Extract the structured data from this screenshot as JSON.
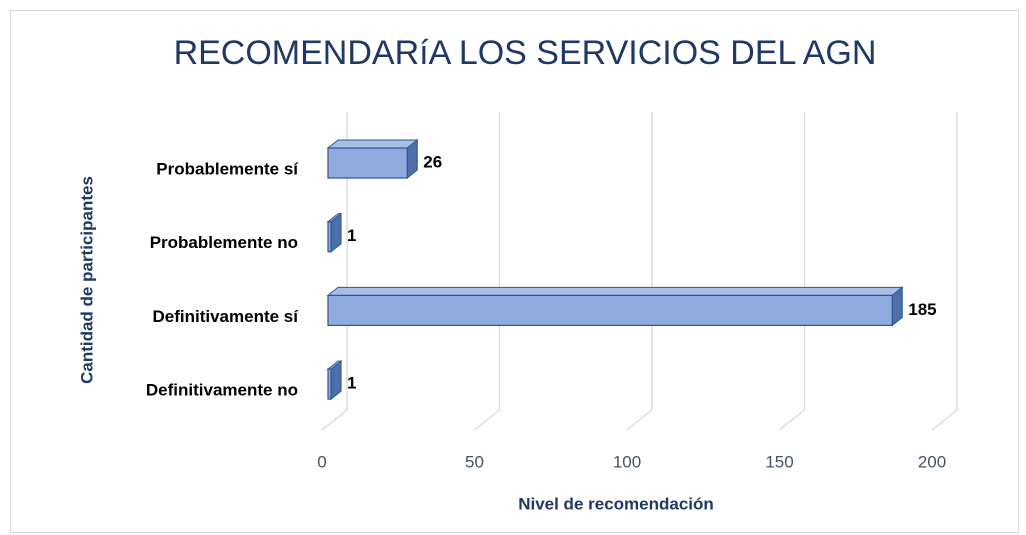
{
  "chart_data": {
    "type": "bar",
    "orientation": "horizontal",
    "title": "RECOMENDARíA LOS SERVICIOS DEL AGN",
    "x_label": "Nivel de recomendación",
    "y_label": "Cantidad de participantes",
    "categories": [
      "Probablemente sí",
      "Probablemente no",
      "Definitivamente sí",
      "Definitivamente no"
    ],
    "values": [
      26,
      1,
      185,
      1
    ],
    "color": "#8faadc",
    "xlim": [
      0,
      200
    ],
    "xticks": [
      0,
      50,
      100,
      150,
      200
    ],
    "grid": true
  }
}
